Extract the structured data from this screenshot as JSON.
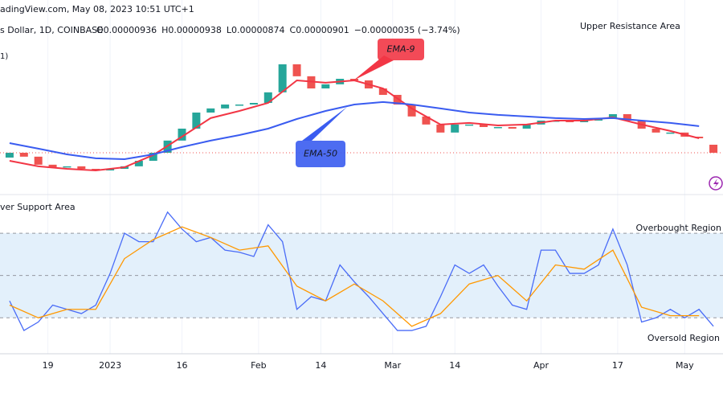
{
  "header": {
    "source": "adingView.com, May 08, 2023 10:51 UTC+1",
    "symbol": "s Dollar, 1D, COINBASE",
    "ohlc": [
      "O0.00000936",
      "H0.00000938",
      "L0.00000874",
      "C0.00000901",
      "−0.00000035 (−3.74%)"
    ],
    "indicator": "1)"
  },
  "chart_data": [
    {
      "type": "candlestick",
      "xlim": [
        -23,
        128
      ],
      "ylim": [
        7.26e-06,
        1.566e-05
      ],
      "up_color": "#26a69a",
      "down_color": "#ef5350",
      "x": [
        -21,
        -18,
        -15,
        -12,
        -9,
        -6,
        -3,
        0,
        3,
        6,
        9,
        12,
        15,
        18,
        21,
        24,
        27,
        30,
        33,
        36,
        39,
        42,
        45,
        48,
        51,
        54,
        57,
        60,
        63,
        66,
        69,
        72,
        75,
        78,
        81,
        84,
        87,
        90,
        93,
        96,
        99,
        102,
        105,
        108,
        111,
        114,
        117,
        120,
        123,
        126
      ],
      "open": [
        8.8e-06,
        9.01e-06,
        8.84e-06,
        8.49e-06,
        8.38e-06,
        8.42e-06,
        8.31e-06,
        8.24e-06,
        8.31e-06,
        8.42e-06,
        8.66e-06,
        9.01e-06,
        9.54e-06,
        1.006e-05,
        1.076e-05,
        1.094e-05,
        1.111e-05,
        1.111e-05,
        1.118e-05,
        1.164e-05,
        1.286e-05,
        1.234e-05,
        1.181e-05,
        1.199e-05,
        1.223e-05,
        1.216e-05,
        1.181e-05,
        1.153e-05,
        1.111e-05,
        1.059e-05,
        1.024e-05,
        9.89e-06,
        1.024e-05,
        1.024e-05,
        1.013e-05,
        1.013e-05,
        1.006e-05,
        1.024e-05,
        1.041e-05,
        1.041e-05,
        1.034e-05,
        1.041e-05,
        1.048e-05,
        1.069e-05,
        1.041e-05,
        1.006e-05,
        9.89e-06,
        9.89e-06,
        9.71e-06,
        9.36e-06
      ],
      "close": [
        9.01e-06,
        8.84e-06,
        8.49e-06,
        8.38e-06,
        8.42e-06,
        8.31e-06,
        8.24e-06,
        8.31e-06,
        8.42e-06,
        8.66e-06,
        9.01e-06,
        9.54e-06,
        1.006e-05,
        1.076e-05,
        1.094e-05,
        1.111e-05,
        1.111e-05,
        1.118e-05,
        1.164e-05,
        1.286e-05,
        1.234e-05,
        1.181e-05,
        1.199e-05,
        1.223e-05,
        1.216e-05,
        1.181e-05,
        1.153e-05,
        1.111e-05,
        1.059e-05,
        1.024e-05,
        9.89e-06,
        1.024e-05,
        1.024e-05,
        1.013e-05,
        1.013e-05,
        1.006e-05,
        1.024e-05,
        1.041e-05,
        1.041e-05,
        1.034e-05,
        1.041e-05,
        1.048e-05,
        1.069e-05,
        1.041e-05,
        1.006e-05,
        9.89e-06,
        9.89e-06,
        9.71e-06,
        9.64e-06,
        9.01e-06
      ],
      "lines": [
        {
          "name": "EMA-9",
          "color": "#f23645",
          "x": [
            -21,
            -15,
            -9,
            -3,
            3,
            9,
            15,
            21,
            27,
            33,
            39,
            45,
            51,
            57,
            63,
            69,
            75,
            81,
            87,
            93,
            99,
            105,
            111,
            117,
            123
          ],
          "values": [
            8.66e-06,
            8.42e-06,
            8.31e-06,
            8.24e-06,
            8.38e-06,
            8.91e-06,
            9.71e-06,
            1.052e-05,
            1.083e-05,
            1.118e-05,
            1.216e-05,
            1.206e-05,
            1.216e-05,
            1.181e-05,
            1.094e-05,
            1.024e-05,
            1.031e-05,
            1.02e-05,
            1.024e-05,
            1.041e-05,
            1.041e-05,
            1.055e-05,
            1.024e-05,
            9.96e-06,
            9.64e-06
          ]
        },
        {
          "name": "EMA-50",
          "color": "#3a5cf0",
          "x": [
            -21,
            -15,
            -9,
            -3,
            3,
            9,
            15,
            21,
            27,
            33,
            39,
            45,
            51,
            57,
            63,
            69,
            75,
            81,
            87,
            93,
            99,
            105,
            111,
            117,
            123
          ],
          "values": [
            9.43e-06,
            9.19e-06,
            8.94e-06,
            8.77e-06,
            8.73e-06,
            8.94e-06,
            9.26e-06,
            9.54e-06,
            9.78e-06,
            1.006e-05,
            1.048e-05,
            1.083e-05,
            1.111e-05,
            1.122e-05,
            1.111e-05,
            1.094e-05,
            1.076e-05,
            1.066e-05,
            1.059e-05,
            1.052e-05,
            1.048e-05,
            1.052e-05,
            1.041e-05,
            1.031e-05,
            1.017e-05
          ]
        }
      ],
      "annotations": [
        "Upper Resistance Area",
        "ver Support Area"
      ]
    },
    {
      "type": "line",
      "xlim": [
        -23,
        128
      ],
      "ylim": [
        13,
        86
      ],
      "yticks": [
        30,
        50,
        70
      ],
      "band_color": "#e3f0fb",
      "xticks": [
        {
          "value": -13,
          "label": "19"
        },
        {
          "value": 0,
          "label": "2023"
        },
        {
          "value": 15,
          "label": "16"
        },
        {
          "value": 31,
          "label": "Feb"
        },
        {
          "value": 44,
          "label": "14"
        },
        {
          "value": 59,
          "label": "Mar"
        },
        {
          "value": 72,
          "label": "14"
        },
        {
          "value": 90,
          "label": "Apr"
        },
        {
          "value": 106,
          "label": "17"
        },
        {
          "value": 120,
          "label": "May"
        }
      ],
      "series": [
        {
          "color": "#4a6cf7",
          "x": [
            -21,
            -18,
            -15,
            -12,
            -9,
            -6,
            -3,
            0,
            3,
            6,
            9,
            12,
            15,
            18,
            21,
            24,
            27,
            30,
            33,
            36,
            39,
            42,
            45,
            48,
            51,
            54,
            57,
            60,
            63,
            66,
            69,
            72,
            75,
            78,
            81,
            84,
            87,
            90,
            93,
            96,
            99,
            102,
            105,
            108,
            111,
            114,
            117,
            120,
            123,
            126
          ],
          "values": [
            38,
            24,
            28,
            36,
            34,
            32,
            36,
            51,
            70,
            66,
            66,
            80,
            72,
            66,
            68,
            62,
            61,
            59,
            74,
            66,
            34,
            40,
            38,
            55,
            47,
            40,
            32,
            24,
            24,
            26,
            40,
            55,
            51,
            55,
            45,
            36,
            34,
            62,
            62,
            51,
            51,
            55,
            72,
            55,
            28,
            30,
            34,
            30,
            34,
            26
          ]
        },
        {
          "color": "#ff9800",
          "x": [
            -21,
            -15,
            -9,
            -3,
            3,
            9,
            15,
            21,
            27,
            33,
            39,
            45,
            51,
            57,
            63,
            69,
            75,
            81,
            87,
            93,
            99,
            105,
            111,
            117,
            123
          ],
          "values": [
            36,
            30,
            34,
            34,
            58,
            67,
            73,
            68,
            62,
            64,
            45,
            38,
            46,
            38,
            26,
            32,
            46,
            50,
            38,
            55,
            53,
            62,
            35,
            31,
            31
          ]
        }
      ],
      "annotations": [
        "Overbought Region",
        "Oversold Region"
      ]
    }
  ]
}
